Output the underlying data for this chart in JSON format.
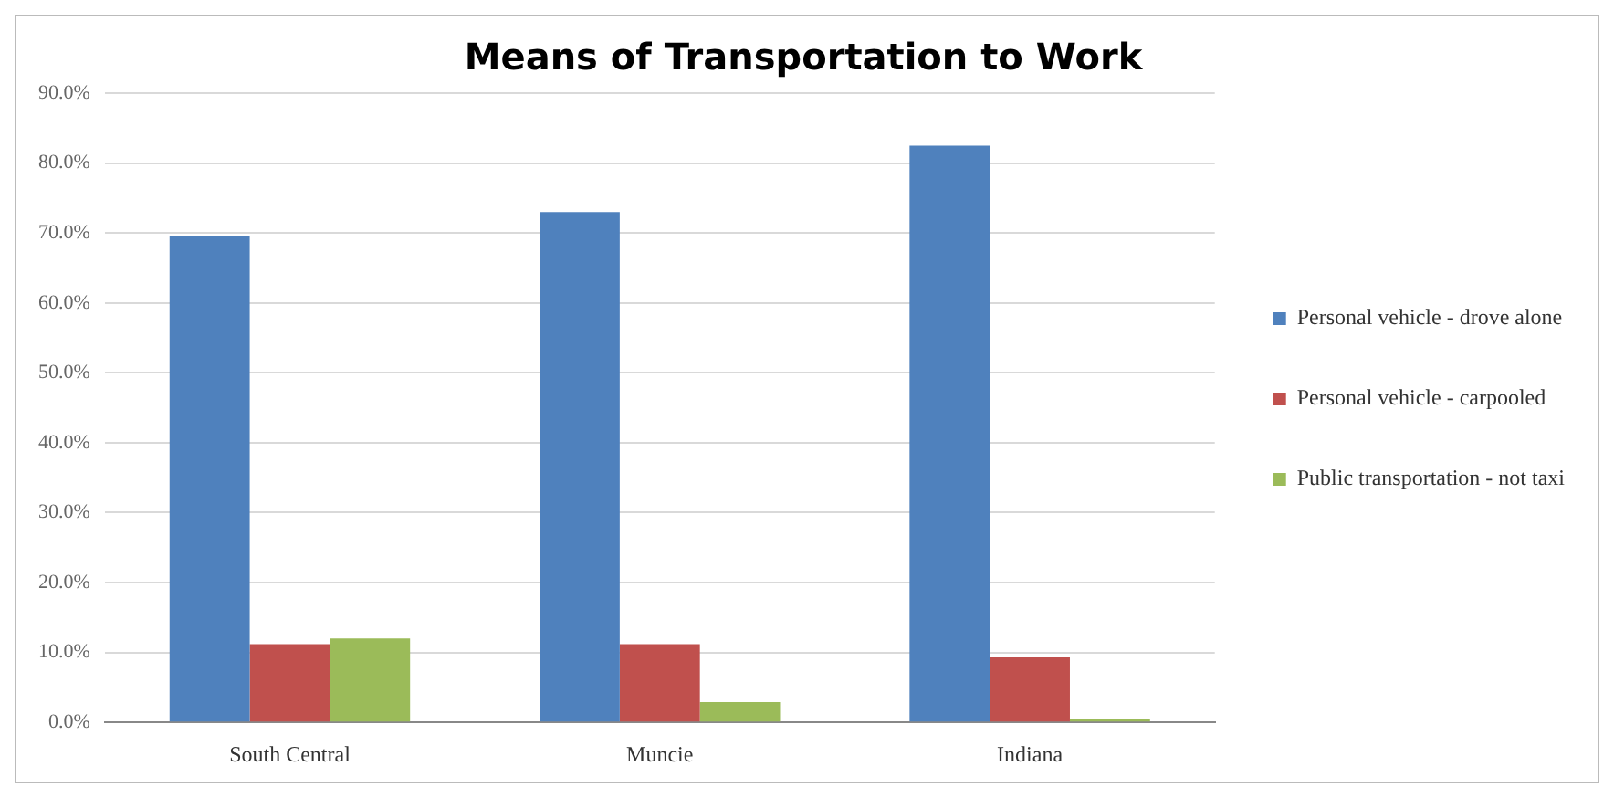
{
  "chart_data": {
    "type": "bar",
    "title": "Means of Transportation to Work",
    "categories": [
      "South Central",
      "Muncie",
      "Indiana"
    ],
    "series": [
      {
        "name": "Personal vehicle - drove alone",
        "color": "#4f81bd",
        "values": [
          69.5,
          73.0,
          82.5
        ]
      },
      {
        "name": "Personal vehicle - carpooled",
        "color": "#c0504d",
        "values": [
          11.2,
          11.2,
          9.3
        ]
      },
      {
        "name": "Public transportation - not taxi",
        "color": "#9bbb59",
        "values": [
          12.0,
          2.9,
          0.5
        ]
      }
    ],
    "ylim": [
      0,
      90
    ],
    "yticks": [
      {
        "value": 0,
        "label": "0.0%"
      },
      {
        "value": 10,
        "label": "10.0%"
      },
      {
        "value": 20,
        "label": "20.0%"
      },
      {
        "value": 30,
        "label": "30.0%"
      },
      {
        "value": 40,
        "label": "40.0%"
      },
      {
        "value": 50,
        "label": "50.0%"
      },
      {
        "value": 60,
        "label": "60.0%"
      },
      {
        "value": 70,
        "label": "70.0%"
      },
      {
        "value": 80,
        "label": "80.0%"
      },
      {
        "value": 90,
        "label": "90.0%"
      }
    ],
    "grid": "y",
    "legend": "right"
  }
}
